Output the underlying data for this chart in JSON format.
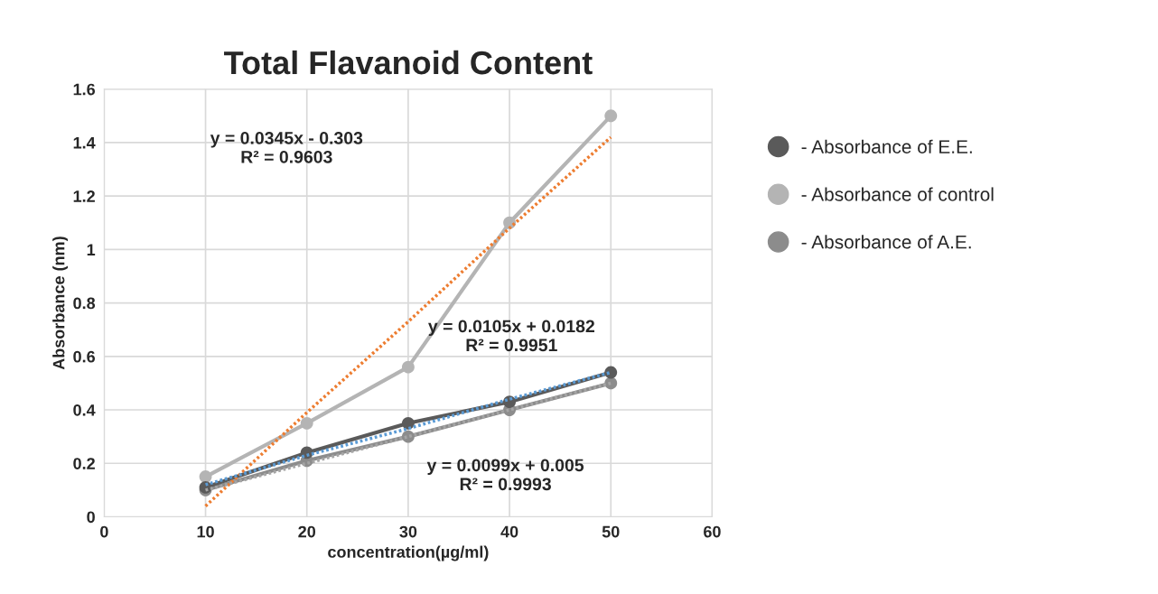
{
  "chart_data": {
    "type": "line",
    "title": "Total Flavanoid Content",
    "xlabel": "concentration(µg/ml)",
    "ylabel": "Absorbance (nm)",
    "x": [
      10,
      20,
      30,
      40,
      50
    ],
    "series": [
      {
        "name": "- Absorbance of E.E.",
        "color": "#5a5a5a",
        "values": [
          0.11,
          0.24,
          0.35,
          0.43,
          0.54
        ],
        "marker": "circle"
      },
      {
        "name": "- Absorbance of control",
        "color": "#b4b4b4",
        "values": [
          0.15,
          0.35,
          0.56,
          1.1,
          1.5
        ],
        "marker": "circle"
      },
      {
        "name": "- Absorbance of A.E.",
        "color": "#8c8c8c",
        "values": [
          0.1,
          0.21,
          0.3,
          0.4,
          0.5
        ],
        "marker": "circle"
      },
      {
        "type": "line",
        "values": [
          0.04,
          0.39,
          0.73,
          1.08,
          1.42
        ],
        "color": "#ed7d31",
        "line_style": "dotted",
        "marker": "none"
      },
      {
        "type": "line",
        "values": [
          0.12,
          0.23,
          0.33,
          0.44,
          0.54
        ],
        "color": "#5b9bd5",
        "line_style": "dotted",
        "marker": "none"
      },
      {
        "type": "line",
        "values": [
          0.1,
          0.2,
          0.3,
          0.4,
          0.5
        ],
        "color": "#a5a5a5",
        "line_style": "dotted",
        "marker": "none"
      }
    ],
    "annotations": [
      "y = 0.0345x - 0.303\nR² = 0.9603",
      "y = 0.0105x + 0.0182\nR² = 0.9951",
      "y = 0.0099x + 0.005\nR² = 0.9993"
    ],
    "xlim": [
      0,
      60
    ],
    "xticks": [
      0,
      10,
      20,
      30,
      40,
      50,
      60
    ],
    "ylim": [
      0,
      1.6
    ],
    "yticks": [
      0,
      0.2,
      0.4,
      0.6,
      0.8,
      1,
      1.2,
      1.4,
      1.6
    ],
    "grid": true,
    "legend": "right"
  }
}
